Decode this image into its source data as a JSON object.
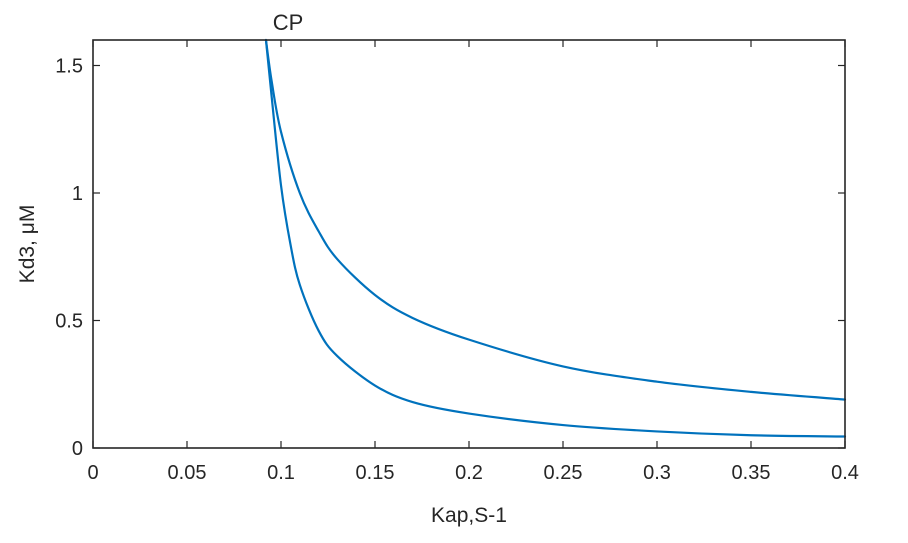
{
  "chart_data": {
    "type": "line",
    "title": "CP",
    "xlabel": "Kap,S-1",
    "ylabel": "Kd3, μM",
    "xlim": [
      0,
      0.4
    ],
    "ylim": [
      0,
      1.6
    ],
    "xticks": [
      0,
      0.05,
      0.1,
      0.15,
      0.2,
      0.25,
      0.3,
      0.35,
      0.4
    ],
    "xtick_labels": [
      "0",
      "0.05",
      "0.1",
      "0.15",
      "0.2",
      "0.25",
      "0.3",
      "0.35",
      "0.4"
    ],
    "yticks": [
      0,
      0.5,
      1,
      1.5
    ],
    "ytick_labels": [
      "0",
      "0.5",
      "1",
      "1.5"
    ],
    "grid": false,
    "line_color": "#0072BD",
    "series": [
      {
        "x": [
          0.092,
          0.095,
          0.1,
          0.11,
          0.12,
          0.13,
          0.15,
          0.17,
          0.2,
          0.25,
          0.3,
          0.35,
          0.4
        ],
        "y": [
          1.6,
          1.44,
          1.24,
          1.0,
          0.85,
          0.74,
          0.6,
          0.51,
          0.425,
          0.32,
          0.26,
          0.22,
          0.19
        ]
      },
      {
        "x": [
          0.092,
          0.095,
          0.1,
          0.105,
          0.11,
          0.12,
          0.13,
          0.15,
          0.17,
          0.2,
          0.25,
          0.3,
          0.35,
          0.4
        ],
        "y": [
          1.6,
          1.38,
          1.03,
          0.8,
          0.64,
          0.46,
          0.36,
          0.245,
          0.18,
          0.135,
          0.09,
          0.065,
          0.05,
          0.045
        ]
      }
    ]
  }
}
